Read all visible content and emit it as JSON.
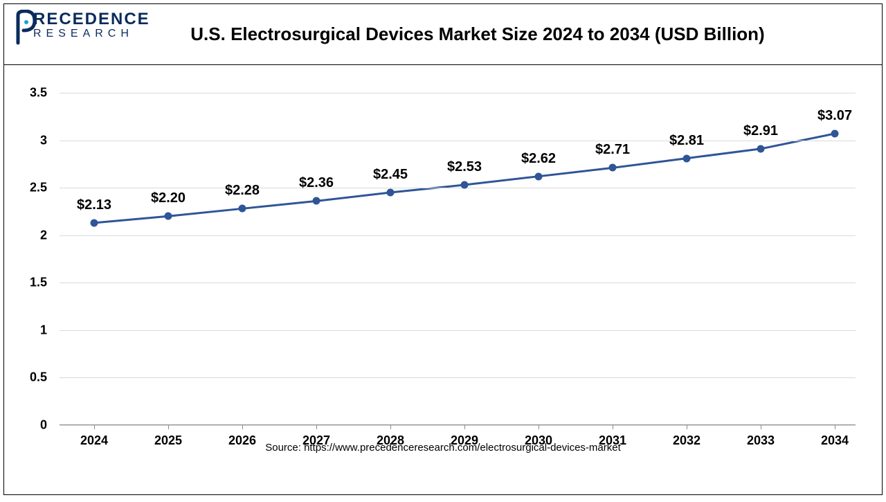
{
  "logo": {
    "line1": "RECEDENCE",
    "line2": "RESEARCH",
    "color": "#0a2b5c"
  },
  "chart": {
    "type": "line",
    "title": "U.S. Electrosurgical Devices Market Size 2024 to 2034 (USD Billion)",
    "categories": [
      "2024",
      "2025",
      "2026",
      "2027",
      "2028",
      "2029",
      "2030",
      "2031",
      "2032",
      "2033",
      "2034"
    ],
    "values": [
      2.13,
      2.2,
      2.28,
      2.36,
      2.45,
      2.53,
      2.62,
      2.71,
      2.81,
      2.91,
      3.07
    ],
    "value_labels": [
      "$2.13",
      "$2.20",
      "$2.28",
      "$2.36",
      "$2.45",
      "$2.53",
      "$2.62",
      "$2.71",
      "$2.81",
      "$2.91",
      "$3.07"
    ],
    "line_color": "#2f5597",
    "marker_color": "#2f5597",
    "line_width": 3,
    "marker_size": 11,
    "ylim": [
      0,
      3.5
    ],
    "ytick_step": 0.5,
    "ytick_labels": [
      "0",
      "0.5",
      "1",
      "1.5",
      "2",
      "2.5",
      "3",
      "3.5"
    ],
    "grid_color": "#d9d9d9",
    "baseline_color": "#8c8c8c",
    "background_color": "#ffffff",
    "title_fontsize": 26,
    "label_fontsize": 20,
    "axis_fontsize": 18
  },
  "source": "Source: https://www.precedenceresearch.com/electrosurgical-devices-market"
}
